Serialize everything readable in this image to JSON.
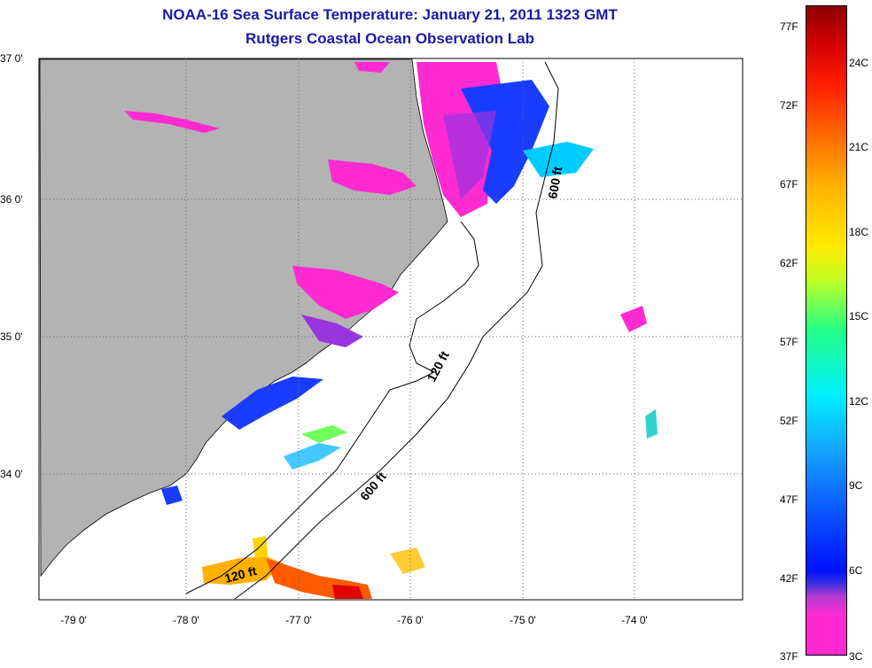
{
  "title_line1": "NOAA-16 Sea Surface Temperature:  January 21, 2011 1323 GMT",
  "title_line2": "Rutgers Coastal Ocean Observation Lab",
  "lat_labels": [
    "37 0'",
    "36 0'",
    "35 0'",
    "34 0'"
  ],
  "lon_labels": [
    "-79 0'",
    "-78 0'",
    "-77 0'",
    "-76 0'",
    "-75 0'",
    "-74 0'"
  ],
  "isobath_labels": {
    "north_600": "600 ft",
    "mid_120": "120 ft",
    "south_600": "600 ft",
    "south_120": "120 ft"
  },
  "colorbar": {
    "fahrenheit": [
      "77F",
      "72F",
      "67F",
      "62F",
      "57F",
      "52F",
      "47F",
      "42F",
      "37F"
    ],
    "celsius": [
      "24C",
      "21C",
      "18C",
      "15C",
      "12C",
      "9C",
      "6C",
      "3C"
    ]
  },
  "colors": {
    "land": "#b3b3b3",
    "title": "#1a1aa8",
    "coldest": "#ff2ad2",
    "warmest": "#8f0000"
  }
}
